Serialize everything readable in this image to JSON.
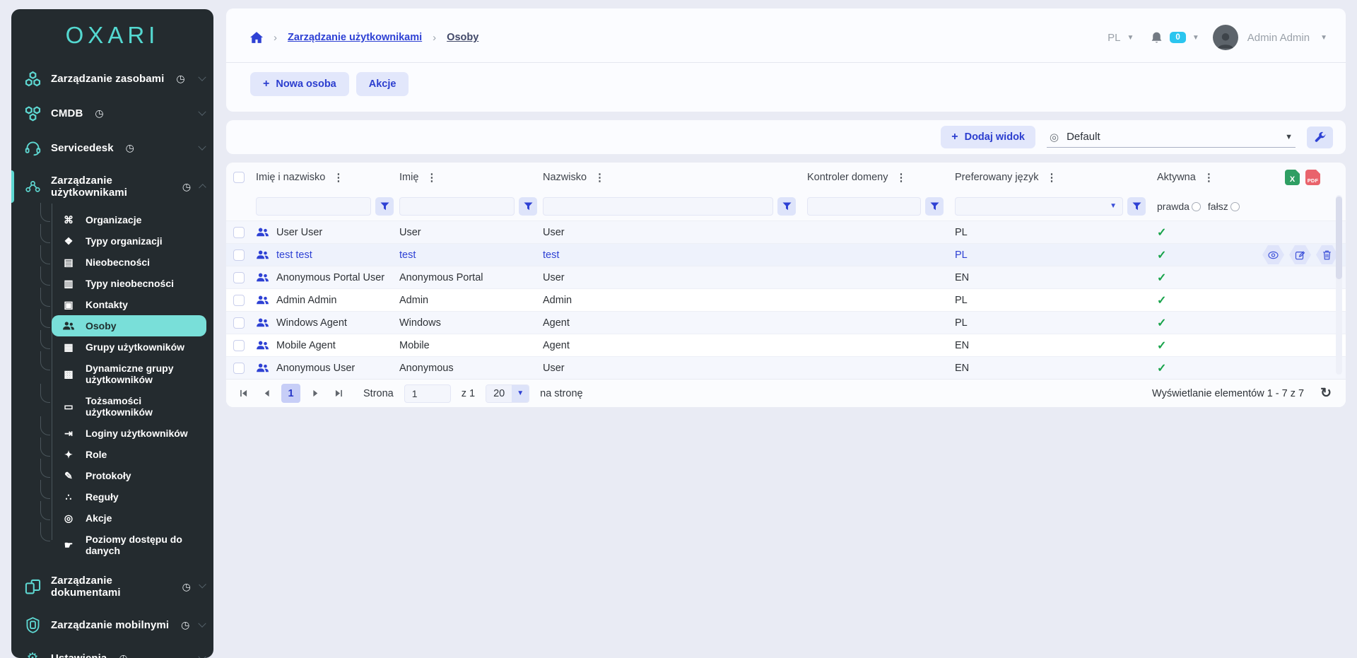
{
  "colors": {
    "teal": "#5ed8d2",
    "blue": "#2e41d4",
    "sidebar_bg": "#242b2f",
    "page_bg": "#e9ebf4",
    "green_check": "#17a34a",
    "badge_cyan": "#2bc5ef",
    "excel_green": "#2f9e63",
    "pdf_red": "#e9636c"
  },
  "sidebar": {
    "logo": "OXARI",
    "groups": [
      {
        "id": "assets",
        "label": "Zarządzanie zasobami",
        "icon": "assets-icon",
        "gauge_icon": "gauge-icon",
        "state": "collapsed"
      },
      {
        "id": "cmdb",
        "label": "CMDB",
        "icon": "cmdb-icon",
        "gauge_icon": "gauge-icon",
        "state": "collapsed"
      },
      {
        "id": "servicedesk",
        "label": "Servicedesk",
        "icon": "servicedesk-icon",
        "gauge_icon": "gauge-icon",
        "state": "collapsed"
      },
      {
        "id": "user-management",
        "label": "Zarządzanie użytkownikami",
        "icon": "user-management-icon",
        "gauge_icon": "gauge-icon",
        "state": "expanded",
        "active": true,
        "children": [
          {
            "label": "Organizacje",
            "icon": "organizations-icon"
          },
          {
            "label": "Typy organizacji",
            "icon": "organization-types-icon"
          },
          {
            "label": "Nieobecności",
            "icon": "absences-icon"
          },
          {
            "label": "Typy nieobecności",
            "icon": "absence-types-icon"
          },
          {
            "label": "Kontakty",
            "icon": "contacts-icon"
          },
          {
            "label": "Osoby",
            "icon": "people-icon",
            "active": true
          },
          {
            "label": "Grupy użytkowników",
            "icon": "user-groups-icon"
          },
          {
            "label": "Dynamiczne grupy użytkowników",
            "icon": "dynamic-user-groups-icon"
          },
          {
            "label": "Tożsamości użytkowników",
            "icon": "user-identities-icon"
          },
          {
            "label": "Loginy użytkowników",
            "icon": "user-logins-icon"
          },
          {
            "label": "Role",
            "icon": "roles-icon"
          },
          {
            "label": "Protokoły",
            "icon": "protocols-icon"
          },
          {
            "label": "Reguły",
            "icon": "rules-icon"
          },
          {
            "label": "Akcje",
            "icon": "actions-icon"
          },
          {
            "label": "Poziomy dostępu do danych",
            "icon": "data-access-levels-icon"
          }
        ]
      },
      {
        "id": "documents",
        "label": "Zarządzanie dokumentami",
        "icon": "documents-icon",
        "gauge_icon": "gauge-icon",
        "state": "collapsed"
      },
      {
        "id": "mobile",
        "label": "Zarządzanie mobilnymi",
        "icon": "mobile-icon",
        "gauge_icon": "gauge-icon",
        "state": "collapsed"
      },
      {
        "id": "settings",
        "label": "Ustawienia",
        "icon": "settings-icon",
        "gauge_icon": "gauge-icon",
        "state": "collapsed"
      }
    ]
  },
  "topbar": {
    "breadcrumb": [
      {
        "label": "Zarządzanie użytkownikami"
      },
      {
        "label": "Osoby"
      }
    ],
    "language": "PL",
    "notification_count": "0",
    "user_name": "Admin Admin"
  },
  "toolbar": {
    "new_person": "Nowa osoba",
    "actions": "Akcje"
  },
  "viewbar": {
    "add_view": "Dodaj widok",
    "view_name": "Default"
  },
  "table": {
    "columns": [
      "Imię i nazwisko",
      "Imię",
      "Nazwisko",
      "Kontroler domeny",
      "Preferowany język",
      "Aktywna"
    ],
    "filters": {
      "true_label": "prawda",
      "false_label": "fałsz"
    },
    "rows": [
      {
        "full_name": "User User",
        "first_name": "User",
        "last_name": "User",
        "domain_controller": "",
        "language": "PL",
        "active": true
      },
      {
        "full_name": "test test",
        "first_name": "test",
        "last_name": "test",
        "domain_controller": "",
        "language": "PL",
        "active": true,
        "hovered": true
      },
      {
        "full_name": "Anonymous Portal User",
        "first_name": "Anonymous Portal",
        "last_name": "User",
        "domain_controller": "",
        "language": "EN",
        "active": true
      },
      {
        "full_name": "Admin Admin",
        "first_name": "Admin",
        "last_name": "Admin",
        "domain_controller": "",
        "language": "PL",
        "active": true
      },
      {
        "full_name": "Windows Agent",
        "first_name": "Windows",
        "last_name": "Agent",
        "domain_controller": "",
        "language": "PL",
        "active": true
      },
      {
        "full_name": "Mobile Agent",
        "first_name": "Mobile",
        "last_name": "Agent",
        "domain_controller": "",
        "language": "EN",
        "active": true
      },
      {
        "full_name": "Anonymous User",
        "first_name": "Anonymous",
        "last_name": "User",
        "domain_controller": "",
        "language": "EN",
        "active": true
      }
    ]
  },
  "pagination": {
    "page_label": "Strona",
    "current_page": "1",
    "of_label": "z 1",
    "page_size": "20",
    "per_page_label": "na stronę",
    "summary": "Wyświetlanie elementów 1 - 7 z 7"
  }
}
